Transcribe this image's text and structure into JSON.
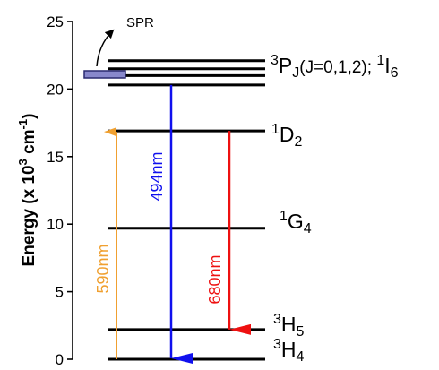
{
  "colors": {
    "level": "#000000",
    "axis": "#000000",
    "emission_494": "#1010ee",
    "emission_680": "#ee1010",
    "excitation_590": "#f0a030",
    "spr_box_fill": "#8888cc",
    "spr_box_stroke": "#2a2a70"
  },
  "axis": {
    "ticks": [
      "0",
      "5",
      "10",
      "15",
      "20",
      "25"
    ],
    "label_main": "Energy (x 10",
    "label_sup": "3",
    "label_unit": " cm",
    "label_unit_sup": "-1",
    "label_close": ")"
  },
  "spr": {
    "label": "SPR"
  },
  "levels": {
    "h4": {
      "energy_1e3cm": 0,
      "sup": "3",
      "letter": "H",
      "sub": "4"
    },
    "h5": {
      "energy_1e3cm": 2.2,
      "sup": "3",
      "letter": "H",
      "sub": "5"
    },
    "g4": {
      "energy_1e3cm": 9.7,
      "sup": "1",
      "letter": "G",
      "sub": "4"
    },
    "d2": {
      "energy_1e3cm": 16.9,
      "sup": "1",
      "letter": "D",
      "sub": "2"
    },
    "p_group": {
      "energies_1e3cm": [
        20.3,
        21.0,
        21.5,
        22.1
      ],
      "p_sup": "3",
      "p_letter": "P",
      "p_sub": "J",
      "j_text": "(J=0,1,2); ",
      "i_sup": "1",
      "i_letter": "I",
      "i_sub": "6"
    }
  },
  "transitions": {
    "t590": {
      "label": "590nm",
      "from": "3H4",
      "to": "1D2"
    },
    "t494": {
      "label": "494nm",
      "from": "3PJ",
      "to": "3H4"
    },
    "t680": {
      "label": "680nm",
      "from": "1D2",
      "to": "3H5"
    }
  }
}
